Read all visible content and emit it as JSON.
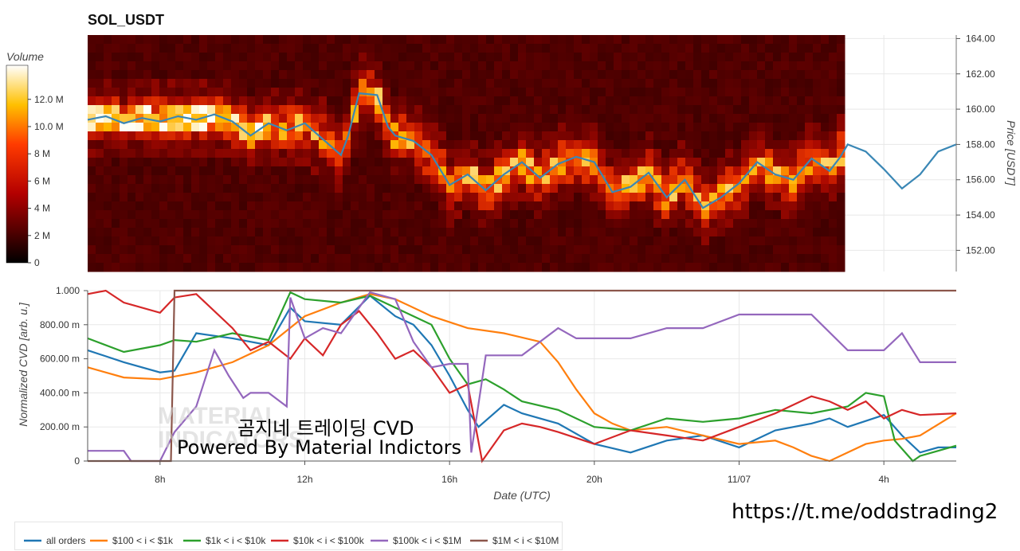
{
  "header": {
    "title": "SOL_USDT"
  },
  "overlay": {
    "cvd_title": "곰지네 트레이딩 CVD",
    "powered_by": "Powered By Material Indictors",
    "link": "https://t.me/oddstrading2",
    "watermark_line1": "MATERIAL",
    "watermark_line2": "INDICATORS"
  },
  "colors": {
    "price_line": "#3a87b5",
    "all_orders": "#1f77b4",
    "s100_1k": "#ff7f0e",
    "s1k_10k": "#2ca02c",
    "s10k_100k": "#d62728",
    "s100k_1m": "#9467bd",
    "s1m_10m": "#8c564b"
  },
  "chart_data": [
    {
      "type": "heatmap",
      "title": "SOL_USDT",
      "colorbar": {
        "label": "Volume",
        "ticks": [
          "12.0 M",
          "10.0 M",
          "8 M",
          "6 M",
          "4 M",
          "2 M",
          "0"
        ],
        "range": [
          0,
          14.5
        ]
      },
      "ylabel": "Price [USDT]",
      "y_ticks": [
        "164.00",
        "162.00",
        "160.00",
        "158.00",
        "156.00",
        "154.00",
        "152.00"
      ],
      "ylim": [
        150.8,
        164.2
      ],
      "price_series": {
        "x_hours": [
          6.0,
          6.5,
          7.0,
          7.5,
          8.0,
          8.5,
          9.0,
          9.5,
          10.0,
          10.5,
          11.0,
          11.5,
          12.0,
          12.5,
          13.0,
          13.2,
          13.5,
          14.0,
          14.3,
          14.5,
          15.0,
          15.5,
          16.0,
          16.5,
          17.0,
          17.5,
          18.0,
          18.5,
          19.0,
          19.5,
          20.0,
          20.5,
          21.0,
          21.5,
          22.0,
          22.5,
          23.0,
          23.5,
          24.0,
          24.5,
          25.0,
          25.5,
          26.0,
          26.5,
          26.8,
          27.0,
          27.5,
          28.0,
          28.5,
          29.0,
          29.5,
          30.0
        ],
        "price": [
          159.4,
          159.6,
          159.2,
          159.5,
          159.3,
          159.6,
          159.4,
          159.7,
          159.3,
          158.5,
          159.2,
          158.8,
          159.2,
          158.3,
          157.4,
          158.5,
          160.9,
          160.8,
          159.0,
          158.5,
          158.2,
          157.4,
          155.7,
          156.3,
          155.4,
          156.3,
          157.0,
          156.1,
          156.9,
          157.3,
          157.0,
          155.3,
          155.6,
          156.4,
          155.0,
          156.0,
          154.4,
          155.0,
          155.8,
          157.0,
          156.3,
          156.0,
          157.2,
          156.5,
          157.3,
          158.0,
          157.6,
          156.6,
          155.5,
          156.3,
          157.6,
          158.0
        ]
      }
    },
    {
      "type": "line",
      "xlabel": "Date (UTC)",
      "ylabel": "Normalized CVD [arb. u.]",
      "x_ticks": [
        "8h",
        "12h",
        "16h",
        "20h",
        "11/07",
        "4h"
      ],
      "y_ticks": [
        "0",
        "200.00 m",
        "400.00 m",
        "600.00 m",
        "800.00 m",
        "1.000"
      ],
      "ylim": [
        0,
        1.0
      ],
      "xlim_hours": [
        6.0,
        30.0
      ],
      "series": [
        {
          "name": "all orders",
          "x_hours": [
            6.0,
            7.0,
            8.0,
            8.4,
            9.0,
            10.0,
            11.0,
            11.6,
            12.0,
            13.0,
            13.8,
            14.5,
            15.0,
            15.5,
            16.0,
            16.5,
            16.8,
            17.5,
            18.0,
            19.0,
            20.0,
            21.0,
            22.0,
            23.0,
            24.0,
            25.0,
            26.0,
            26.5,
            27.0,
            28.0,
            28.5,
            29.0,
            29.5,
            30.0
          ],
          "values": [
            0.65,
            0.58,
            0.52,
            0.53,
            0.75,
            0.72,
            0.68,
            0.9,
            0.82,
            0.8,
            0.97,
            0.85,
            0.8,
            0.68,
            0.5,
            0.3,
            0.2,
            0.33,
            0.28,
            0.22,
            0.1,
            0.05,
            0.12,
            0.15,
            0.08,
            0.18,
            0.22,
            0.25,
            0.2,
            0.27,
            0.15,
            0.05,
            0.08,
            0.08
          ]
        },
        {
          "name": "$100 < i < $1k",
          "x_hours": [
            6.0,
            7.0,
            8.0,
            9.0,
            10.0,
            11.0,
            12.0,
            13.0,
            13.8,
            14.5,
            15.5,
            16.5,
            17.5,
            18.5,
            19.0,
            19.5,
            20.0,
            20.5,
            21.0,
            22.0,
            23.0,
            24.0,
            25.0,
            25.5,
            26.0,
            26.5,
            27.0,
            27.5,
            28.0,
            28.5,
            29.0,
            30.0
          ],
          "values": [
            0.55,
            0.49,
            0.48,
            0.52,
            0.58,
            0.68,
            0.85,
            0.93,
            0.98,
            0.95,
            0.85,
            0.78,
            0.75,
            0.7,
            0.58,
            0.42,
            0.28,
            0.22,
            0.18,
            0.2,
            0.15,
            0.1,
            0.12,
            0.08,
            0.03,
            0.0,
            0.05,
            0.1,
            0.12,
            0.13,
            0.15,
            0.28
          ]
        },
        {
          "name": "$1k < i < $10k",
          "x_hours": [
            6.0,
            7.0,
            8.0,
            8.4,
            9.0,
            10.0,
            11.0,
            11.6,
            12.0,
            13.0,
            13.8,
            14.5,
            15.0,
            15.5,
            16.0,
            16.5,
            17.0,
            17.5,
            18.0,
            19.0,
            20.0,
            21.0,
            22.0,
            23.0,
            24.0,
            25.0,
            26.0,
            27.0,
            27.5,
            28.0,
            28.3,
            28.8,
            29.0,
            29.5,
            30.0
          ],
          "values": [
            0.72,
            0.64,
            0.68,
            0.71,
            0.7,
            0.75,
            0.71,
            0.99,
            0.95,
            0.93,
            0.97,
            0.9,
            0.85,
            0.8,
            0.6,
            0.45,
            0.48,
            0.42,
            0.35,
            0.3,
            0.2,
            0.18,
            0.25,
            0.23,
            0.25,
            0.3,
            0.28,
            0.32,
            0.4,
            0.38,
            0.12,
            0.0,
            0.03,
            0.06,
            0.09
          ]
        },
        {
          "name": "$10k < i < $100k",
          "x_hours": [
            6.0,
            6.5,
            7.0,
            8.0,
            8.4,
            9.0,
            10.0,
            10.5,
            11.0,
            11.6,
            12.0,
            12.5,
            13.0,
            13.5,
            14.0,
            14.5,
            15.0,
            15.5,
            16.0,
            16.5,
            16.9,
            17.5,
            18.0,
            18.5,
            19.0,
            20.0,
            21.0,
            22.0,
            23.0,
            24.0,
            25.0,
            26.0,
            26.5,
            27.0,
            27.5,
            28.0,
            28.5,
            29.0,
            30.0
          ],
          "values": [
            0.98,
            1.0,
            0.93,
            0.87,
            0.96,
            0.98,
            0.78,
            0.65,
            0.7,
            0.6,
            0.72,
            0.62,
            0.8,
            0.88,
            0.75,
            0.6,
            0.65,
            0.55,
            0.4,
            0.45,
            0.0,
            0.18,
            0.22,
            0.2,
            0.17,
            0.1,
            0.18,
            0.15,
            0.12,
            0.2,
            0.28,
            0.38,
            0.35,
            0.3,
            0.35,
            0.25,
            0.3,
            0.27,
            0.28
          ]
        },
        {
          "name": "$100k < i < $1M",
          "x_hours": [
            6.0,
            7.0,
            7.2,
            8.0,
            8.4,
            9.0,
            9.5,
            9.9,
            10.3,
            10.5,
            11.0,
            11.5,
            11.6,
            12.0,
            12.5,
            13.0,
            13.8,
            14.5,
            15.0,
            15.5,
            16.0,
            16.5,
            16.6,
            17.0,
            18.0,
            19.0,
            19.5,
            20.0,
            21.0,
            22.0,
            23.0,
            24.0,
            25.0,
            26.0,
            27.0,
            28.0,
            28.5,
            29.0,
            30.0
          ],
          "values": [
            0.06,
            0.06,
            0.0,
            0.0,
            0.17,
            0.32,
            0.65,
            0.5,
            0.37,
            0.4,
            0.4,
            0.32,
            0.96,
            0.72,
            0.78,
            0.75,
            0.99,
            0.95,
            0.7,
            0.55,
            0.57,
            0.57,
            0.05,
            0.62,
            0.62,
            0.78,
            0.72,
            0.72,
            0.72,
            0.78,
            0.78,
            0.86,
            0.86,
            0.86,
            0.65,
            0.65,
            0.75,
            0.58,
            0.58
          ]
        },
        {
          "name": "$1M < i < $10M",
          "x_hours": [
            6.0,
            8.3,
            8.4,
            30.0
          ],
          "values": [
            0.0,
            0.0,
            1.0,
            1.0
          ]
        }
      ]
    }
  ]
}
